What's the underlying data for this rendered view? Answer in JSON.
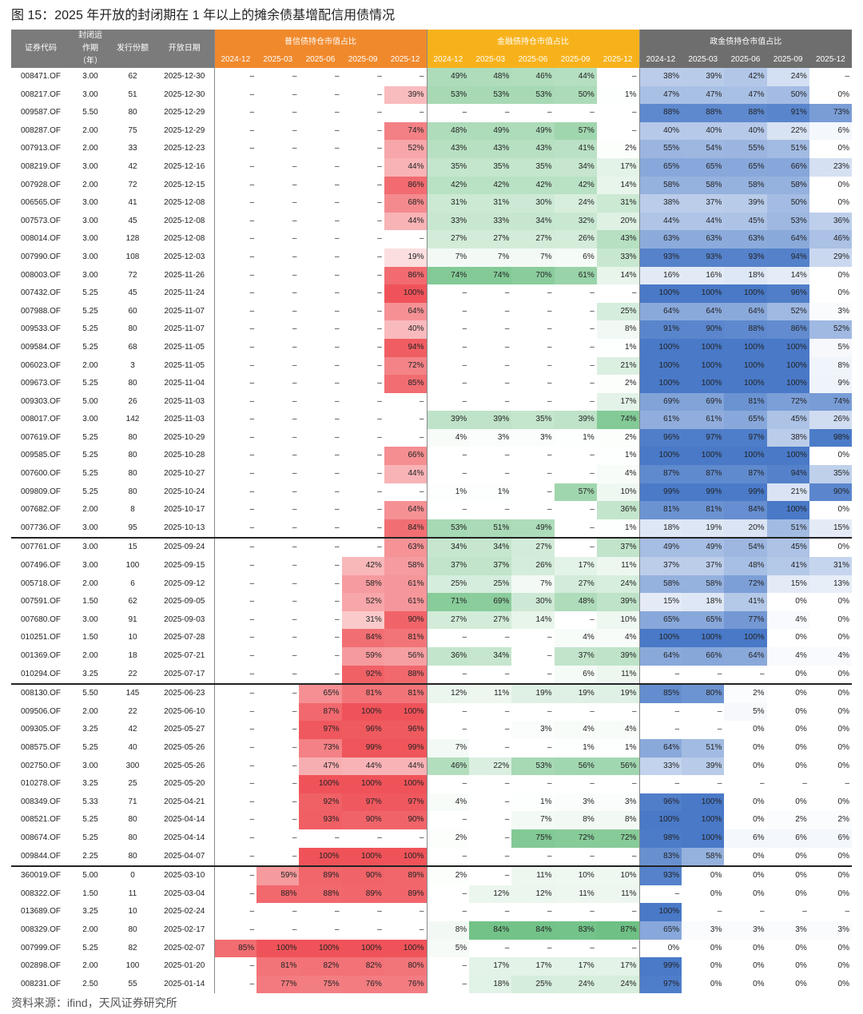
{
  "title": "图 15：2025 年开放的封闭期在 1 年以上的摊余债基增配信用债情况",
  "footer": "资料来源：ifind，天风证券研究所",
  "table": {
    "header": {
      "columns": [
        "证券代码",
        "封闭运作期（年）",
        "发行份额",
        "开放日期"
      ],
      "groups": [
        {
          "title": "普信债持仓市值占比",
          "header_color": "#f0892c",
          "color": "#ee4a50",
          "periods": [
            "2024-12",
            "2025-03",
            "2025-06",
            "2025-09",
            "2025-12"
          ]
        },
        {
          "title": "金融债持仓市值占比",
          "header_color": "#f7b21b",
          "color": "#4fb36a",
          "periods": [
            "2024-12",
            "2025-03",
            "2025-06",
            "2025-09",
            "2025-12"
          ]
        },
        {
          "title": "政金债持仓市值占比",
          "header_color": "#6e6e6e",
          "color": "#3f72c4",
          "periods": [
            "2024-12",
            "2025-03",
            "2025-06",
            "2025-09",
            "2025-12"
          ]
        }
      ]
    },
    "rows": [
      [
        "008471.OF",
        "3.00",
        "62",
        "2025-12-30",
        "–",
        "–",
        "–",
        "–",
        "–",
        "49%",
        "48%",
        "46%",
        "44%",
        "–",
        "38%",
        "39%",
        "42%",
        "24%",
        "–"
      ],
      [
        "008217.OF",
        "3.00",
        "51",
        "2025-12-30",
        "–",
        "–",
        "–",
        "–",
        "39%",
        "53%",
        "53%",
        "53%",
        "50%",
        "1%",
        "47%",
        "47%",
        "47%",
        "50%",
        "0%"
      ],
      [
        "009587.OF",
        "5.50",
        "80",
        "2025-12-29",
        "–",
        "–",
        "–",
        "–",
        "–",
        "–",
        "–",
        "–",
        "–",
        "–",
        "88%",
        "88%",
        "88%",
        "91%",
        "73%"
      ],
      [
        "008287.OF",
        "2.00",
        "75",
        "2025-12-29",
        "–",
        "–",
        "–",
        "–",
        "74%",
        "48%",
        "49%",
        "49%",
        "57%",
        "–",
        "40%",
        "40%",
        "40%",
        "22%",
        "6%"
      ],
      [
        "007913.OF",
        "2.00",
        "33",
        "2025-12-23",
        "–",
        "–",
        "–",
        "–",
        "52%",
        "43%",
        "43%",
        "43%",
        "41%",
        "2%",
        "55%",
        "54%",
        "55%",
        "51%",
        "0%"
      ],
      [
        "008219.OF",
        "3.00",
        "42",
        "2025-12-16",
        "–",
        "–",
        "–",
        "–",
        "44%",
        "35%",
        "35%",
        "35%",
        "34%",
        "17%",
        "65%",
        "65%",
        "65%",
        "66%",
        "23%"
      ],
      [
        "007928.OF",
        "2.00",
        "72",
        "2025-12-15",
        "–",
        "–",
        "–",
        "–",
        "86%",
        "42%",
        "42%",
        "42%",
        "42%",
        "14%",
        "58%",
        "58%",
        "58%",
        "58%",
        "0%"
      ],
      [
        "006565.OF",
        "3.00",
        "41",
        "2025-12-08",
        "–",
        "–",
        "–",
        "–",
        "68%",
        "31%",
        "31%",
        "30%",
        "24%",
        "31%",
        "38%",
        "37%",
        "39%",
        "50%",
        "0%"
      ],
      [
        "007573.OF",
        "3.00",
        "45",
        "2025-12-08",
        "–",
        "–",
        "–",
        "–",
        "44%",
        "33%",
        "33%",
        "34%",
        "32%",
        "20%",
        "44%",
        "44%",
        "45%",
        "53%",
        "36%"
      ],
      [
        "008014.OF",
        "3.00",
        "128",
        "2025-12-08",
        "–",
        "–",
        "–",
        "–",
        "–",
        "27%",
        "27%",
        "27%",
        "26%",
        "43%",
        "63%",
        "63%",
        "63%",
        "64%",
        "46%"
      ],
      [
        "007990.OF",
        "3.00",
        "108",
        "2025-12-03",
        "–",
        "–",
        "–",
        "–",
        "19%",
        "7%",
        "7%",
        "7%",
        "6%",
        "33%",
        "93%",
        "93%",
        "93%",
        "94%",
        "29%"
      ],
      [
        "008003.OF",
        "3.00",
        "72",
        "2025-11-26",
        "–",
        "–",
        "–",
        "–",
        "86%",
        "74%",
        "74%",
        "70%",
        "61%",
        "14%",
        "16%",
        "16%",
        "18%",
        "14%",
        "0%"
      ],
      [
        "007432.OF",
        "5.25",
        "45",
        "2025-11-24",
        "–",
        "–",
        "–",
        "–",
        "100%",
        "–",
        "–",
        "–",
        "–",
        "–",
        "100%",
        "100%",
        "100%",
        "96%",
        "0%"
      ],
      [
        "007988.OF",
        "5.25",
        "60",
        "2025-11-07",
        "–",
        "–",
        "–",
        "–",
        "64%",
        "–",
        "–",
        "–",
        "–",
        "25%",
        "64%",
        "64%",
        "64%",
        "52%",
        "3%"
      ],
      [
        "009533.OF",
        "5.25",
        "80",
        "2025-11-07",
        "–",
        "–",
        "–",
        "–",
        "40%",
        "–",
        "–",
        "–",
        "–",
        "8%",
        "91%",
        "90%",
        "88%",
        "86%",
        "52%"
      ],
      [
        "009584.OF",
        "5.25",
        "68",
        "2025-11-05",
        "–",
        "–",
        "–",
        "–",
        "94%",
        "–",
        "–",
        "–",
        "–",
        "1%",
        "100%",
        "100%",
        "100%",
        "100%",
        "5%"
      ],
      [
        "006023.OF",
        "2.00",
        "3",
        "2025-11-05",
        "–",
        "–",
        "–",
        "–",
        "72%",
        "–",
        "–",
        "–",
        "–",
        "21%",
        "100%",
        "100%",
        "100%",
        "100%",
        "8%"
      ],
      [
        "009673.OF",
        "5.25",
        "80",
        "2025-11-04",
        "–",
        "–",
        "–",
        "–",
        "85%",
        "–",
        "–",
        "–",
        "–",
        "2%",
        "100%",
        "100%",
        "100%",
        "100%",
        "9%"
      ],
      [
        "009303.OF",
        "5.00",
        "26",
        "2025-11-03",
        "–",
        "–",
        "–",
        "–",
        "–",
        "–",
        "–",
        "–",
        "–",
        "17%",
        "69%",
        "69%",
        "81%",
        "72%",
        "74%"
      ],
      [
        "008017.OF",
        "3.00",
        "142",
        "2025-11-03",
        "–",
        "–",
        "–",
        "–",
        "–",
        "39%",
        "39%",
        "35%",
        "39%",
        "74%",
        "61%",
        "61%",
        "65%",
        "45%",
        "26%"
      ],
      [
        "007619.OF",
        "5.25",
        "80",
        "2025-10-29",
        "–",
        "–",
        "–",
        "–",
        "–",
        "4%",
        "3%",
        "3%",
        "1%",
        "2%",
        "96%",
        "97%",
        "97%",
        "38%",
        "98%"
      ],
      [
        "009585.OF",
        "5.25",
        "80",
        "2025-10-28",
        "–",
        "–",
        "–",
        "–",
        "66%",
        "–",
        "–",
        "–",
        "–",
        "1%",
        "100%",
        "100%",
        "100%",
        "100%",
        "0%"
      ],
      [
        "007600.OF",
        "5.25",
        "80",
        "2025-10-27",
        "–",
        "–",
        "–",
        "–",
        "44%",
        "–",
        "–",
        "–",
        "–",
        "4%",
        "87%",
        "87%",
        "87%",
        "94%",
        "35%"
      ],
      [
        "009809.OF",
        "5.25",
        "80",
        "2025-10-24",
        "–",
        "–",
        "–",
        "–",
        "–",
        "1%",
        "1%",
        "–",
        "57%",
        "10%",
        "99%",
        "99%",
        "99%",
        "21%",
        "90%"
      ],
      [
        "007682.OF",
        "2.00",
        "8",
        "2025-10-17",
        "–",
        "–",
        "–",
        "–",
        "64%",
        "–",
        "–",
        "–",
        "–",
        "36%",
        "81%",
        "81%",
        "84%",
        "100%",
        "0%"
      ],
      [
        "007736.OF",
        "3.00",
        "95",
        "2025-10-13",
        "–",
        "–",
        "–",
        "–",
        "84%",
        "53%",
        "51%",
        "49%",
        "–",
        "1%",
        "18%",
        "19%",
        "20%",
        "51%",
        "15%"
      ],
      [
        "007761.OF",
        "3.00",
        "15",
        "2025-09-24",
        "–",
        "–",
        "–",
        "–",
        "63%",
        "34%",
        "34%",
        "27%",
        "–",
        "37%",
        "49%",
        "49%",
        "54%",
        "45%",
        "0%"
      ],
      [
        "007496.OF",
        "3.00",
        "100",
        "2025-09-15",
        "–",
        "–",
        "–",
        "42%",
        "58%",
        "37%",
        "37%",
        "26%",
        "17%",
        "11%",
        "37%",
        "37%",
        "48%",
        "41%",
        "31%"
      ],
      [
        "005718.OF",
        "2.00",
        "6",
        "2025-09-12",
        "–",
        "–",
        "–",
        "58%",
        "61%",
        "25%",
        "25%",
        "7%",
        "27%",
        "24%",
        "58%",
        "58%",
        "72%",
        "15%",
        "13%"
      ],
      [
        "007591.OF",
        "1.50",
        "62",
        "2025-09-05",
        "–",
        "–",
        "–",
        "52%",
        "61%",
        "71%",
        "69%",
        "30%",
        "48%",
        "39%",
        "15%",
        "18%",
        "41%",
        "0%",
        "0%"
      ],
      [
        "007680.OF",
        "3.00",
        "91",
        "2025-09-03",
        "–",
        "–",
        "–",
        "31%",
        "90%",
        "27%",
        "27%",
        "14%",
        "–",
        "10%",
        "65%",
        "65%",
        "77%",
        "4%",
        "0%"
      ],
      [
        "010251.OF",
        "1.50",
        "10",
        "2025-07-28",
        "–",
        "–",
        "–",
        "84%",
        "81%",
        "–",
        "–",
        "–",
        "4%",
        "4%",
        "100%",
        "100%",
        "100%",
        "0%",
        "0%"
      ],
      [
        "001369.OF",
        "2.00",
        "18",
        "2025-07-21",
        "–",
        "–",
        "–",
        "59%",
        "56%",
        "36%",
        "34%",
        "–",
        "37%",
        "39%",
        "64%",
        "66%",
        "64%",
        "4%",
        "4%"
      ],
      [
        "010294.OF",
        "3.25",
        "22",
        "2025-07-17",
        "–",
        "–",
        "–",
        "92%",
        "88%",
        "–",
        "–",
        "–",
        "6%",
        "11%",
        "–",
        "–",
        "–",
        "0%",
        "0%"
      ],
      [
        "008130.OF",
        "5.50",
        "145",
        "2025-06-23",
        "–",
        "–",
        "65%",
        "81%",
        "81%",
        "12%",
        "11%",
        "19%",
        "19%",
        "19%",
        "85%",
        "80%",
        "2%",
        "0%",
        "0%"
      ],
      [
        "009506.OF",
        "2.00",
        "22",
        "2025-06-10",
        "–",
        "–",
        "87%",
        "100%",
        "100%",
        "–",
        "–",
        "–",
        "–",
        "–",
        "–",
        "–",
        "5%",
        "0%",
        "0%"
      ],
      [
        "009305.OF",
        "3.25",
        "42",
        "2025-05-27",
        "–",
        "–",
        "97%",
        "96%",
        "96%",
        "–",
        "–",
        "3%",
        "4%",
        "4%",
        "–",
        "–",
        "0%",
        "0%",
        "0%"
      ],
      [
        "008575.OF",
        "5.25",
        "40",
        "2025-05-26",
        "–",
        "–",
        "73%",
        "99%",
        "99%",
        "7%",
        "–",
        "–",
        "1%",
        "1%",
        "64%",
        "51%",
        "0%",
        "0%",
        "0%"
      ],
      [
        "002750.OF",
        "3.00",
        "300",
        "2025-05-26",
        "–",
        "–",
        "47%",
        "44%",
        "44%",
        "46%",
        "22%",
        "53%",
        "56%",
        "56%",
        "33%",
        "39%",
        "0%",
        "0%",
        "0%"
      ],
      [
        "010278.OF",
        "3.25",
        "25",
        "2025-05-20",
        "–",
        "–",
        "100%",
        "100%",
        "100%",
        "–",
        "–",
        "–",
        "–",
        "–",
        "–",
        "–",
        "–",
        "–",
        "–"
      ],
      [
        "008349.OF",
        "5.33",
        "71",
        "2025-04-21",
        "–",
        "–",
        "92%",
        "97%",
        "97%",
        "4%",
        "–",
        "1%",
        "3%",
        "3%",
        "96%",
        "100%",
        "0%",
        "0%",
        "0%"
      ],
      [
        "008521.OF",
        "5.25",
        "80",
        "2025-04-14",
        "–",
        "–",
        "93%",
        "90%",
        "90%",
        "–",
        "–",
        "7%",
        "8%",
        "8%",
        "100%",
        "100%",
        "0%",
        "2%",
        "2%"
      ],
      [
        "008674.OF",
        "5.25",
        "80",
        "2025-04-14",
        "–",
        "–",
        "–",
        "–",
        "–",
        "2%",
        "–",
        "75%",
        "72%",
        "72%",
        "98%",
        "100%",
        "6%",
        "6%",
        "6%"
      ],
      [
        "009844.OF",
        "2.25",
        "80",
        "2025-04-07",
        "–",
        "–",
        "100%",
        "100%",
        "100%",
        "–",
        "–",
        "–",
        "–",
        "–",
        "83%",
        "58%",
        "0%",
        "0%",
        "0%"
      ],
      [
        "360019.OF",
        "5.00",
        "0",
        "2025-03-10",
        "–",
        "59%",
        "89%",
        "90%",
        "89%",
        "2%",
        "–",
        "11%",
        "10%",
        "10%",
        "93%",
        "0%",
        "0%",
        "0%",
        "0%"
      ],
      [
        "008322.OF",
        "1.50",
        "11",
        "2025-03-04",
        "–",
        "88%",
        "88%",
        "89%",
        "89%",
        "–",
        "12%",
        "12%",
        "11%",
        "11%",
        "–",
        "0%",
        "0%",
        "0%",
        "0%"
      ],
      [
        "013689.OF",
        "3.25",
        "10",
        "2025-02-24",
        "–",
        "–",
        "–",
        "–",
        "–",
        "–",
        "–",
        "–",
        "–",
        "–",
        "100%",
        "–",
        "–",
        "–",
        "–"
      ],
      [
        "008329.OF",
        "2.00",
        "80",
        "2025-02-17",
        "–",
        "–",
        "–",
        "–",
        "–",
        "8%",
        "84%",
        "84%",
        "83%",
        "87%",
        "65%",
        "3%",
        "3%",
        "3%",
        "3%"
      ],
      [
        "007999.OF",
        "5.25",
        "82",
        "2025-02-07",
        "85%",
        "100%",
        "100%",
        "100%",
        "100%",
        "5%",
        "–",
        "–",
        "–",
        "–",
        "0%",
        "0%",
        "0%",
        "0%",
        "0%"
      ],
      [
        "002898.OF",
        "2.00",
        "100",
        "2025-01-20",
        "–",
        "81%",
        "82%",
        "82%",
        "80%",
        "–",
        "17%",
        "17%",
        "17%",
        "17%",
        "99%",
        "0%",
        "0%",
        "0%",
        "0%"
      ],
      [
        "008231.OF",
        "2.50",
        "55",
        "2025-01-14",
        "–",
        "77%",
        "75%",
        "76%",
        "76%",
        "–",
        "18%",
        "25%",
        "24%",
        "24%",
        "97%",
        "0%",
        "0%",
        "0%",
        "0%"
      ]
    ]
  }
}
